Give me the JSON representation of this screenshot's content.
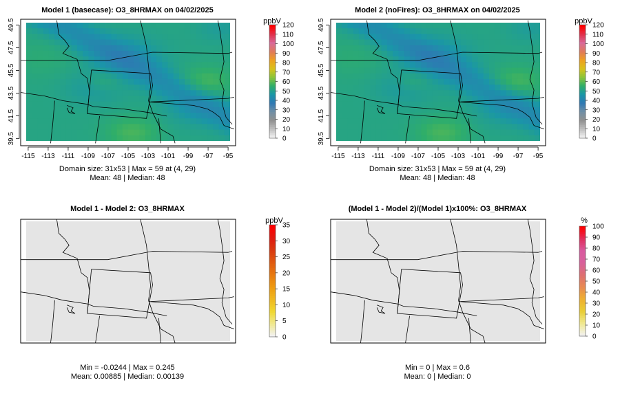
{
  "chart_data": [
    {
      "type": "heatmap",
      "title": "Model 1 (basecase): O3_8HRMAX on 04/02/2025",
      "x_ticks": [
        "-115",
        "-113",
        "-111",
        "-109",
        "-107",
        "-105",
        "-103",
        "-101",
        "-99",
        "-97",
        "-95"
      ],
      "x_tick_values": [
        -115,
        -113,
        -111,
        -109,
        -107,
        -105,
        -103,
        -101,
        -99,
        -97,
        -95
      ],
      "y_ticks": [
        "39.5",
        "41.5",
        "43.5",
        "45.5",
        "47.5",
        "49.5"
      ],
      "y_tick_values": [
        39.5,
        41.5,
        43.5,
        45.5,
        47.5,
        49.5
      ],
      "xlim": [
        -115.2,
        -94.8
      ],
      "ylim": [
        39.3,
        49.7
      ],
      "grid_size": "31x53",
      "value_range": [
        38,
        59
      ],
      "colorbar": {
        "unit": "ppbV",
        "ticks": [
          "0",
          "10",
          "20",
          "30",
          "40",
          "50",
          "60",
          "70",
          "80",
          "90",
          "100",
          "110",
          "120"
        ],
        "max": 120,
        "palette": [
          "#f2f2f2",
          "#bdbdbd",
          "#909090",
          "#6f8fa6",
          "#2f78b3",
          "#1a96a8",
          "#2fae6a",
          "#8ac43a",
          "#d9c21a",
          "#eea020",
          "#e07a5a",
          "#d86a9a",
          "#e0304a",
          "#ff0000"
        ]
      },
      "stats": [
        "Domain size: 31x53 | Max = 59 at (4, 29)",
        "Mean: 48 |  Median: 48"
      ]
    },
    {
      "type": "heatmap",
      "title": "Model 2 (noFires): O3_8HRMAX on 04/02/2025",
      "x_ticks": [
        "-115",
        "-113",
        "-111",
        "-109",
        "-107",
        "-105",
        "-103",
        "-101",
        "-99",
        "-97",
        "-95"
      ],
      "x_tick_values": [
        -115,
        -113,
        -111,
        -109,
        -107,
        -105,
        -103,
        -101,
        -99,
        -97,
        -95
      ],
      "y_ticks": [
        "39.5",
        "41.5",
        "43.5",
        "45.5",
        "47.5",
        "49.5"
      ],
      "y_tick_values": [
        39.5,
        41.5,
        43.5,
        45.5,
        47.5,
        49.5
      ],
      "xlim": [
        -115.2,
        -94.8
      ],
      "ylim": [
        39.3,
        49.7
      ],
      "grid_size": "31x53",
      "value_range": [
        38,
        59
      ],
      "colorbar": {
        "unit": "ppbV",
        "ticks": [
          "0",
          "10",
          "20",
          "30",
          "40",
          "50",
          "60",
          "70",
          "80",
          "90",
          "100",
          "110",
          "120"
        ],
        "max": 120,
        "palette": [
          "#f2f2f2",
          "#bdbdbd",
          "#909090",
          "#6f8fa6",
          "#2f78b3",
          "#1a96a8",
          "#2fae6a",
          "#8ac43a",
          "#d9c21a",
          "#eea020",
          "#e07a5a",
          "#d86a9a",
          "#e0304a",
          "#ff0000"
        ]
      },
      "stats": [
        "Domain size: 31x53 | Max = 59 at (4, 29)",
        "Mean: 48 |  Median: 48"
      ]
    },
    {
      "type": "heatmap",
      "title": "Model 1 - Model 2: O3_8HRMAX",
      "fill_color": "#e5e5e5",
      "colorbar": {
        "unit": "ppbV",
        "ticks": [
          "0",
          "5",
          "10",
          "15",
          "20",
          "25",
          "30",
          "35"
        ],
        "max": 35,
        "palette": [
          "#f2f2f2",
          "#f0e890",
          "#f0d830",
          "#efb820",
          "#ee9a10",
          "#e77a10",
          "#e05a10",
          "#d93a10",
          "#e01a10",
          "#ff0000"
        ]
      },
      "stats": [
        "Min = -0.0244 | Max = 0.245",
        "Mean: 0.00885 |  Median: 0.00139"
      ]
    },
    {
      "type": "heatmap",
      "title": "(Model 1 - Model 2)/(Model 1)x100%: O3_8HRMAX",
      "fill_color": "#e5e5e5",
      "colorbar": {
        "unit": "%",
        "ticks": [
          "0",
          "10",
          "20",
          "30",
          "40",
          "50",
          "60",
          "70",
          "80",
          "90",
          "100"
        ],
        "max": 100,
        "palette": [
          "#f2f2f2",
          "#f0e890",
          "#e9cd35",
          "#eeb030",
          "#e88a50",
          "#de7070",
          "#d8609a",
          "#d85aa0",
          "#e03060",
          "#ff0000"
        ]
      },
      "stats": [
        "Min = 0 | Max = 0.6",
        "Mean: 0 |  Median: 0"
      ]
    }
  ]
}
